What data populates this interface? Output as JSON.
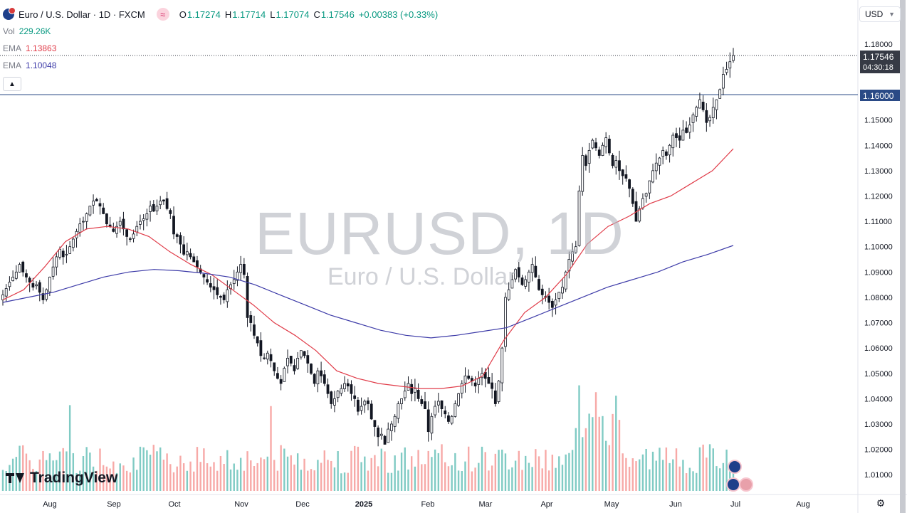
{
  "header": {
    "symbol_title": "Euro / U.S. Dollar · 1D · FXCM",
    "open_label": "O",
    "open": "1.17274",
    "high_label": "H",
    "high": "1.17714",
    "low_label": "L",
    "low": "1.17074",
    "close_label": "C",
    "close": "1.17546",
    "change": "+0.00383 (+0.33%)"
  },
  "indicators": {
    "vol_name": "Vol",
    "vol_value": "229.26K",
    "ema1_name": "EMA",
    "ema1_value": "1.13863",
    "ema2_name": "EMA",
    "ema2_value": "1.10048"
  },
  "currency_select": "USD",
  "watermark": {
    "main": "EURUSD, 1D",
    "sub": "Euro / U.S. Dollar"
  },
  "logo_text": "TradingView",
  "price_tags": {
    "last": "1.17546",
    "countdown": "04:30:18",
    "level": "1.16000"
  },
  "colors": {
    "up": "#089981",
    "down": "#131722",
    "vol_up": "#80cbc4",
    "vol_down": "#f7a9a7",
    "ema_fast": "#e03b48",
    "ema_slow": "#3d3ba8",
    "hline": "#2a4a86",
    "last_tag": "#363a45",
    "level_tag": "#2a4a86"
  },
  "chart_data": {
    "type": "candlestick",
    "timeframe": "1D",
    "ylim": [
      1.005,
      1.185
    ],
    "y_ticks": [
      "1.18000",
      "1.17000",
      "1.16000",
      "1.15000",
      "1.14000",
      "1.13000",
      "1.12000",
      "1.11000",
      "1.10000",
      "1.09000",
      "1.08000",
      "1.07000",
      "1.06000",
      "1.05000",
      "1.04000",
      "1.03000",
      "1.02000",
      "1.01000"
    ],
    "x_labels": [
      "Aug",
      "Sep",
      "Oct",
      "Nov",
      "Dec",
      "2025",
      "Feb",
      "Mar",
      "Apr",
      "May",
      "Jun",
      "Jul",
      "Aug"
    ],
    "horizontal_line": 1.16,
    "last_price": 1.17546,
    "closes": [
      1.081,
      1.0835,
      1.086,
      1.088,
      1.09,
      1.093,
      1.09,
      1.088,
      1.086,
      1.084,
      1.085,
      1.082,
      1.079,
      1.083,
      1.088,
      1.092,
      1.096,
      1.099,
      1.096,
      1.097,
      1.1,
      1.103,
      1.106,
      1.109,
      1.11,
      1.113,
      1.116,
      1.118,
      1.118,
      1.116,
      1.113,
      1.109,
      1.108,
      1.106,
      1.108,
      1.11,
      1.107,
      1.104,
      1.103,
      1.105,
      1.108,
      1.11,
      1.111,
      1.113,
      1.116,
      1.114,
      1.116,
      1.118,
      1.118,
      1.115,
      1.113,
      1.105,
      1.104,
      1.101,
      1.097,
      1.098,
      1.096,
      1.094,
      1.092,
      1.09,
      1.088,
      1.086,
      1.084,
      1.083,
      1.081,
      1.08,
      1.079,
      1.083,
      1.085,
      1.087,
      1.09,
      1.093,
      1.089,
      1.072,
      1.07,
      1.065,
      1.062,
      1.057,
      1.056,
      1.058,
      1.055,
      1.051,
      1.048,
      1.046,
      1.052,
      1.056,
      1.054,
      1.051,
      1.056,
      1.059,
      1.057,
      1.054,
      1.05,
      1.046,
      1.051,
      1.049,
      1.046,
      1.042,
      1.038,
      1.04,
      1.043,
      1.044,
      1.046,
      1.045,
      1.042,
      1.04,
      1.035,
      1.037,
      1.039,
      1.038,
      1.032,
      1.029,
      1.025,
      1.026,
      1.022,
      1.028,
      1.03,
      1.033,
      1.038,
      1.04,
      1.043,
      1.046,
      1.042,
      1.044,
      1.04,
      1.038,
      1.036,
      1.027,
      1.033,
      1.037,
      1.039,
      1.036,
      1.034,
      1.031,
      1.033,
      1.038,
      1.042,
      1.046,
      1.049,
      1.048,
      1.047,
      1.045,
      1.048,
      1.05,
      1.048,
      1.046,
      1.044,
      1.038,
      1.047,
      1.06,
      1.08,
      1.083,
      1.087,
      1.091,
      1.088,
      1.085,
      1.087,
      1.09,
      1.093,
      1.088,
      1.083,
      1.081,
      1.08,
      1.078,
      1.076,
      1.079,
      1.082,
      1.084,
      1.09,
      1.095,
      1.098,
      1.1,
      1.122,
      1.136,
      1.132,
      1.138,
      1.142,
      1.139,
      1.136,
      1.14,
      1.143,
      1.137,
      1.132,
      1.134,
      1.13,
      1.128,
      1.127,
      1.123,
      1.117,
      1.11,
      1.115,
      1.119,
      1.121,
      1.126,
      1.13,
      1.133,
      1.135,
      1.138,
      1.136,
      1.14,
      1.144,
      1.143,
      1.142,
      1.146,
      1.145,
      1.148,
      1.152,
      1.155,
      1.158,
      1.154,
      1.149,
      1.151,
      1.155,
      1.158,
      1.162,
      1.168,
      1.17,
      1.173,
      1.17546
    ],
    "ema_fast": [
      1.079,
      1.083,
      1.092,
      1.102,
      1.107,
      1.108,
      1.107,
      1.104,
      1.098,
      1.093,
      1.089,
      1.083,
      1.077,
      1.07,
      1.065,
      1.059,
      1.051,
      1.048,
      1.046,
      1.045,
      1.044,
      1.044,
      1.045,
      1.049,
      1.063,
      1.074,
      1.08,
      1.089,
      1.101,
      1.108,
      1.112,
      1.117,
      1.12,
      1.125,
      1.13,
      1.13863
    ],
    "ema_slow": [
      1.078,
      1.08,
      1.082,
      1.085,
      1.088,
      1.09,
      1.091,
      1.0905,
      1.0895,
      1.088,
      1.085,
      1.081,
      1.077,
      1.073,
      1.07,
      1.067,
      1.065,
      1.064,
      1.065,
      1.0665,
      1.068,
      1.072,
      1.076,
      1.08,
      1.084,
      1.087,
      1.09,
      1.094,
      1.097,
      1.10048
    ],
    "volume_scale_max": 100
  }
}
